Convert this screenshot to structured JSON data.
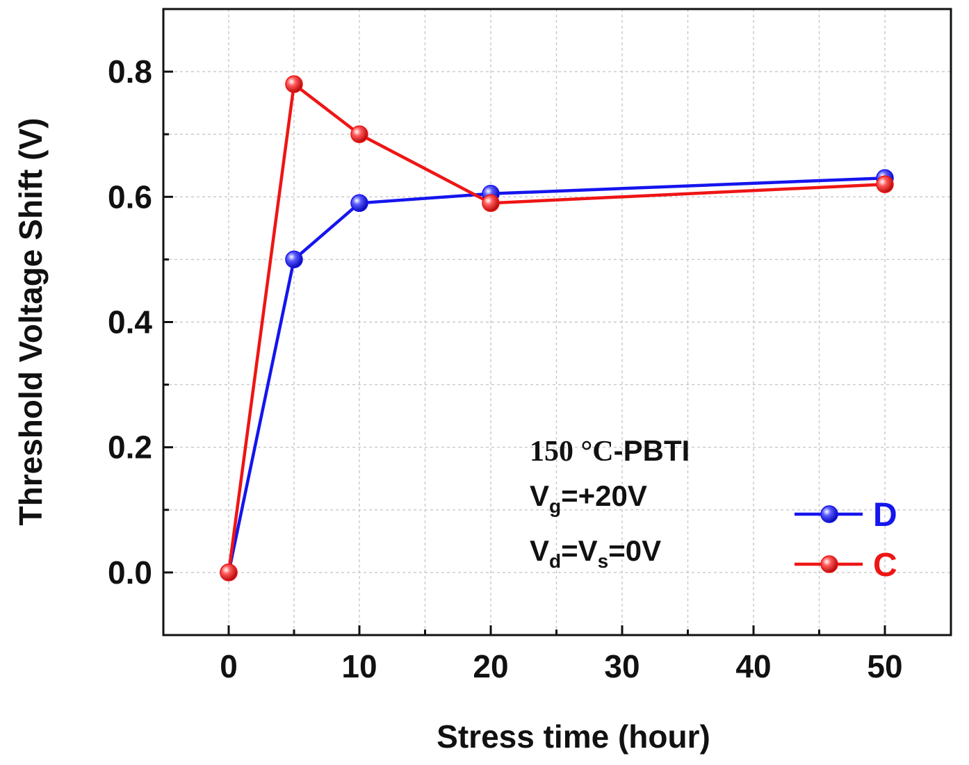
{
  "chart_data": {
    "type": "line",
    "title": "",
    "xlabel": "Stress time (hour)",
    "ylabel": "Threshold Voltage Shift (V)",
    "x_tick_values": [
      0,
      10,
      20,
      30,
      40,
      50
    ],
    "x_tick_labels": [
      "0",
      "10",
      "20",
      "30",
      "40",
      "50"
    ],
    "y_tick_values": [
      0.0,
      0.2,
      0.4,
      0.6,
      0.8
    ],
    "y_tick_labels": [
      "0.0",
      "0.2",
      "0.4",
      "0.6",
      "0.8"
    ],
    "xlim": [
      -5,
      55
    ],
    "ylim": [
      -0.1,
      0.9
    ],
    "grid": true,
    "legend_position": "bottom-right",
    "annotation": {
      "line1_number": "150 °C",
      "line1_rest": "-PBTI",
      "line2_main": "V",
      "line2_sub": "g",
      "line2_rest": "=+20V",
      "line3_v1": "V",
      "line3_sub1": "d",
      "line3_mid": "=V",
      "line3_sub2": "s",
      "line3_rest": "=0V"
    },
    "series": [
      {
        "name": "D",
        "color": "#1515ee",
        "x": [
          0,
          5,
          10,
          20,
          50
        ],
        "y": [
          0.0,
          0.5,
          0.59,
          0.605,
          0.63
        ]
      },
      {
        "name": "C",
        "color": "#ee1515",
        "x": [
          0,
          5,
          10,
          20,
          50
        ],
        "y": [
          0.0,
          0.78,
          0.7,
          0.59,
          0.62
        ]
      }
    ]
  }
}
